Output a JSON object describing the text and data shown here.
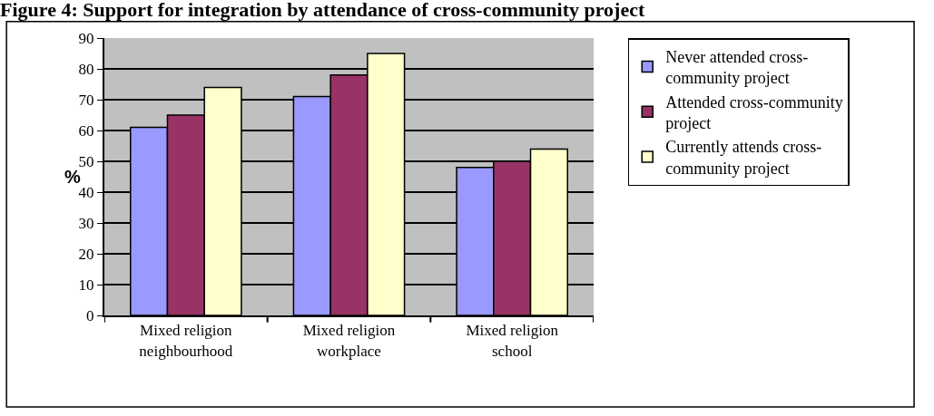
{
  "chart_data": {
    "type": "bar",
    "title": "Figure 4: Support for integration by attendance of cross-community project",
    "ylabel": "%",
    "categories": [
      "Mixed religion\nneighbourhood",
      "Mixed religion\nworkplace",
      "Mixed religion\nschool"
    ],
    "series": [
      {
        "name": "Never attended cross-\ncommunity project",
        "color": "#9999ff",
        "values": [
          61,
          71,
          48
        ]
      },
      {
        "name": "Attended cross-community\nproject",
        "color": "#993366",
        "values": [
          65,
          78,
          50
        ]
      },
      {
        "name": "Currently attends cross-\ncommunity project",
        "color": "#ffffcc",
        "values": [
          74,
          85,
          54
        ]
      }
    ],
    "ylim": [
      0,
      90
    ],
    "yticks": [
      0,
      10,
      20,
      30,
      40,
      50,
      60,
      70,
      80,
      90
    ],
    "grid": "y",
    "legend": "right"
  }
}
